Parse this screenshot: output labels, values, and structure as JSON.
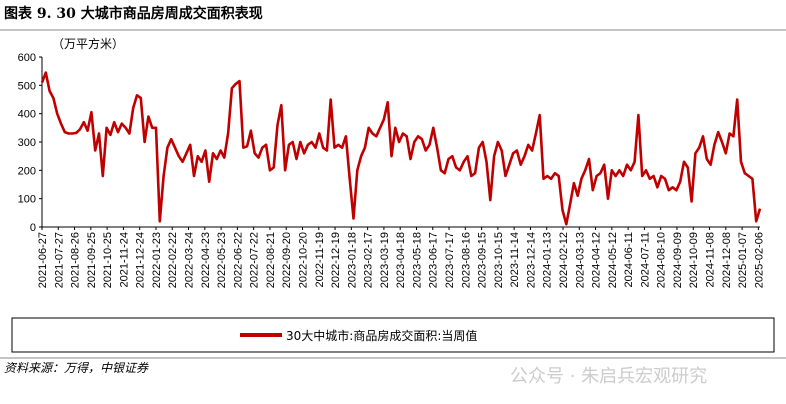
{
  "chart_data": {
    "type": "line",
    "title": "图表 9. 30 大城市商品房周成交面积表现",
    "y_label": "（万平方米）",
    "source": "资料来源：万得，中银证券",
    "watermark": "公众号 · 朱启兵宏观研究",
    "xlim": [
      "2021-06-27",
      "2025-02-09"
    ],
    "xticks": [
      "2021-06-27",
      "2021-07-27",
      "2021-08-26",
      "2021-09-25",
      "2021-10-25",
      "2021-11-24",
      "2021-12-24",
      "2022-01-23",
      "2022-02-22",
      "2022-03-24",
      "2022-04-23",
      "2022-05-23",
      "2022-06-22",
      "2022-07-22",
      "2022-08-21",
      "2022-09-20",
      "2022-10-20",
      "2022-11-19",
      "2022-12-19",
      "2023-01-18",
      "2023-02-17",
      "2023-03-19",
      "2023-04-18",
      "2023-05-18",
      "2023-06-17",
      "2023-07-17",
      "2023-08-16",
      "2023-09-15",
      "2023-10-15",
      "2023-11-14",
      "2023-12-14",
      "2024-01-13",
      "2024-02-12",
      "2024-03-13",
      "2024-04-12",
      "2024-05-12",
      "2024-06-11",
      "2024-07-11",
      "2024-08-10",
      "2024-09-09",
      "2024-10-09",
      "2024-11-08",
      "2024-12-08",
      "2025-01-07",
      "2025-02-06"
    ],
    "ylim": [
      0,
      600
    ],
    "yticks": [
      0,
      100,
      200,
      300,
      400,
      500,
      600
    ],
    "x": [
      "2021-06-27",
      "2021-07-04",
      "2021-07-11",
      "2021-07-18",
      "2021-07-25",
      "2021-08-01",
      "2021-08-08",
      "2021-08-15",
      "2021-08-22",
      "2021-08-29",
      "2021-09-05",
      "2021-09-12",
      "2021-09-19",
      "2021-09-26",
      "2021-10-03",
      "2021-10-10",
      "2021-10-17",
      "2021-10-24",
      "2021-10-31",
      "2021-11-07",
      "2021-11-14",
      "2021-11-21",
      "2021-11-28",
      "2021-12-05",
      "2021-12-12",
      "2021-12-19",
      "2021-12-26",
      "2022-01-02",
      "2022-01-09",
      "2022-01-16",
      "2022-01-23",
      "2022-01-30",
      "2022-02-06",
      "2022-02-13",
      "2022-02-20",
      "2022-02-27",
      "2022-03-06",
      "2022-03-13",
      "2022-03-20",
      "2022-03-27",
      "2022-04-03",
      "2022-04-10",
      "2022-04-17",
      "2022-04-24",
      "2022-05-01",
      "2022-05-08",
      "2022-05-15",
      "2022-05-22",
      "2022-05-29",
      "2022-06-05",
      "2022-06-12",
      "2022-06-19",
      "2022-06-26",
      "2022-07-03",
      "2022-07-10",
      "2022-07-17",
      "2022-07-24",
      "2022-07-31",
      "2022-08-07",
      "2022-08-14",
      "2022-08-21",
      "2022-08-28",
      "2022-09-04",
      "2022-09-11",
      "2022-09-18",
      "2022-09-25",
      "2022-10-02",
      "2022-10-09",
      "2022-10-16",
      "2022-10-23",
      "2022-10-30",
      "2022-11-06",
      "2022-11-13",
      "2022-11-20",
      "2022-11-27",
      "2022-12-04",
      "2022-12-11",
      "2022-12-18",
      "2022-12-25",
      "2023-01-01",
      "2023-01-08",
      "2023-01-15",
      "2023-01-22",
      "2023-01-29",
      "2023-02-05",
      "2023-02-12",
      "2023-02-19",
      "2023-02-26",
      "2023-03-05",
      "2023-03-12",
      "2023-03-19",
      "2023-03-26",
      "2023-04-02",
      "2023-04-09",
      "2023-04-16",
      "2023-04-23",
      "2023-04-30",
      "2023-05-07",
      "2023-05-14",
      "2023-05-21",
      "2023-05-28",
      "2023-06-04",
      "2023-06-11",
      "2023-06-18",
      "2023-06-25",
      "2023-07-02",
      "2023-07-09",
      "2023-07-16",
      "2023-07-23",
      "2023-07-30",
      "2023-08-06",
      "2023-08-13",
      "2023-08-20",
      "2023-08-27",
      "2023-09-03",
      "2023-09-10",
      "2023-09-17",
      "2023-09-24",
      "2023-10-01",
      "2023-10-08",
      "2023-10-15",
      "2023-10-22",
      "2023-10-29",
      "2023-11-05",
      "2023-11-12",
      "2023-11-19",
      "2023-11-26",
      "2023-12-03",
      "2023-12-10",
      "2023-12-17",
      "2023-12-24",
      "2023-12-31",
      "2024-01-07",
      "2024-01-14",
      "2024-01-21",
      "2024-01-28",
      "2024-02-04",
      "2024-02-11",
      "2024-02-18",
      "2024-02-25",
      "2024-03-03",
      "2024-03-10",
      "2024-03-17",
      "2024-03-24",
      "2024-03-31",
      "2024-04-07",
      "2024-04-14",
      "2024-04-21",
      "2024-04-28",
      "2024-05-05",
      "2024-05-12",
      "2024-05-19",
      "2024-05-26",
      "2024-06-02",
      "2024-06-09",
      "2024-06-16",
      "2024-06-23",
      "2024-06-30",
      "2024-07-07",
      "2024-07-14",
      "2024-07-21",
      "2024-07-28",
      "2024-08-04",
      "2024-08-11",
      "2024-08-18",
      "2024-08-25",
      "2024-09-01",
      "2024-09-08",
      "2024-09-15",
      "2024-09-22",
      "2024-09-29",
      "2024-10-06",
      "2024-10-13",
      "2024-10-20",
      "2024-10-27",
      "2024-11-03",
      "2024-11-10",
      "2024-11-17",
      "2024-11-24",
      "2024-12-01",
      "2024-12-08",
      "2024-12-15",
      "2024-12-22",
      "2024-12-29",
      "2025-01-05",
      "2025-01-12",
      "2025-01-19",
      "2025-01-26",
      "2025-02-02",
      "2025-02-09"
    ],
    "series": [
      {
        "name": "30大中城市:商品房成交面积:当周值",
        "color": "#c00000",
        "values": [
          510,
          545,
          480,
          455,
          400,
          365,
          335,
          330,
          330,
          332,
          345,
          370,
          340,
          405,
          270,
          330,
          180,
          350,
          325,
          370,
          335,
          365,
          350,
          330,
          420,
          465,
          455,
          300,
          390,
          350,
          350,
          20,
          180,
          280,
          310,
          280,
          250,
          230,
          260,
          290,
          180,
          250,
          230,
          270,
          160,
          260,
          240,
          270,
          245,
          330,
          490,
          505,
          515,
          280,
          285,
          340,
          260,
          245,
          280,
          290,
          200,
          210,
          360,
          430,
          200,
          290,
          300,
          240,
          300,
          260,
          290,
          300,
          280,
          330,
          280,
          270,
          450,
          280,
          290,
          280,
          320,
          170,
          30,
          200,
          250,
          280,
          350,
          330,
          320,
          350,
          380,
          440,
          250,
          350,
          300,
          330,
          320,
          240,
          300,
          320,
          310,
          270,
          290,
          350,
          280,
          200,
          190,
          240,
          250,
          210,
          200,
          230,
          250,
          180,
          190,
          280,
          300,
          230,
          95,
          250,
          300,
          270,
          180,
          220,
          260,
          270,
          220,
          250,
          290,
          270,
          330,
          395,
          170,
          180,
          170,
          190,
          180,
          60,
          10,
          80,
          155,
          110,
          170,
          200,
          240,
          130,
          180,
          190,
          220,
          100,
          200,
          180,
          200,
          180,
          220,
          200,
          230,
          395,
          180,
          200,
          170,
          180,
          140,
          180,
          170,
          130,
          140,
          130,
          160,
          230,
          210,
          90,
          260,
          280,
          320,
          240,
          220,
          290,
          335,
          300,
          260,
          330,
          320,
          450,
          230,
          190,
          180,
          170,
          20,
          65
        ]
      }
    ]
  }
}
